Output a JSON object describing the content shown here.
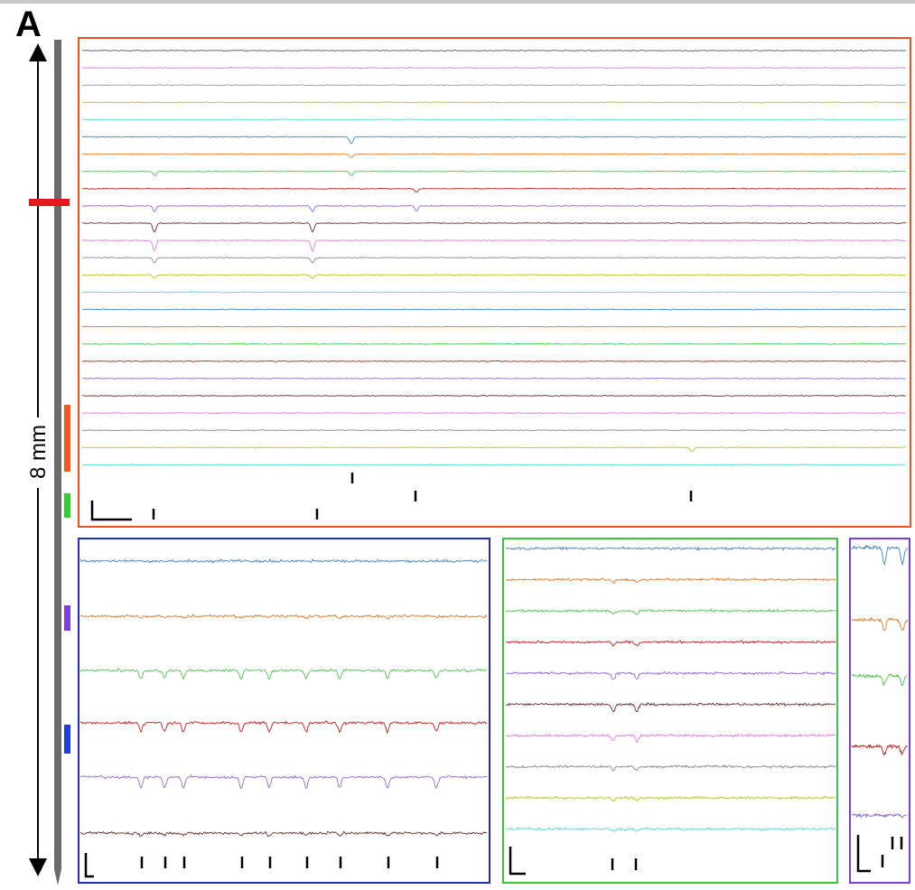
{
  "figure": {
    "panel_label": "A",
    "scale_label": "8 mm",
    "colors": {
      "probe_shaft": "#6b6b6b",
      "panel_top": "#e8541e",
      "panel_blue": "#2030b8",
      "panel_green": "#3cc43c",
      "panel_purple": "#7b3fd6",
      "marker_red": "#e31a1c",
      "marker_orange": "#f05a1e",
      "marker_green": "#33cc33",
      "marker_purple": "#7b3fe0",
      "marker_blue": "#1f3fe0",
      "trace_palette": [
        "#4a4a4a",
        "#d07bd6",
        "#9a9a9a",
        "#b6c21a",
        "#5bd0d0",
        "#3a86c9",
        "#e07a2a",
        "#4fc44f",
        "#c41d1d",
        "#8b6ad6",
        "#6b2a2a",
        "#e37ae0",
        "#8a8a8a",
        "#b8c41a",
        "#4fd6d6"
      ]
    },
    "panels": [
      {
        "id": "top",
        "border_color": "#e8541e",
        "trace_count": 25,
        "trace_colors": [
          "#5a5a5a",
          "#d582d8",
          "#9a9a9a",
          "#b6c21a",
          "#66d4d4",
          "#3a86c9",
          "#e07a2a",
          "#4fc44f",
          "#c41d1d",
          "#8b6ad6",
          "#6b2a2a",
          "#e37ae0",
          "#8a8a8a",
          "#b8c41a",
          "#56d6d6",
          "#3a86c9",
          "#e07a2a",
          "#4fc44f",
          "#c41d1d",
          "#8b6ad6",
          "#6b2a2a",
          "#e37ae0",
          "#8a8a8a",
          "#b8c41a",
          "#56d6d6"
        ],
        "spike_event_rows": 3
      },
      {
        "id": "bottom-blue",
        "border_color": "#2030b8",
        "trace_count": 6,
        "trace_colors": [
          "#3a86c9",
          "#e07a2a",
          "#4fc44f",
          "#c41d1d",
          "#8b6ad6",
          "#6b2a2a"
        ],
        "spike_event_rows": 1
      },
      {
        "id": "bottom-green",
        "border_color": "#3cc43c",
        "trace_count": 10,
        "trace_colors": [
          "#3a86c9",
          "#e07a2a",
          "#4fc44f",
          "#c41d1d",
          "#8b6ad6",
          "#6b2a2a",
          "#e37ae0",
          "#8a8a8a",
          "#b8c41a",
          "#56d6d6"
        ],
        "spike_event_rows": 1
      },
      {
        "id": "bottom-purple",
        "border_color": "#7b3fd6",
        "trace_count": 5,
        "trace_colors": [
          "#3a86c9",
          "#e07a2a",
          "#4fc44f",
          "#c41d1d",
          "#8b6ad6"
        ],
        "spike_event_rows": 1
      }
    ]
  }
}
